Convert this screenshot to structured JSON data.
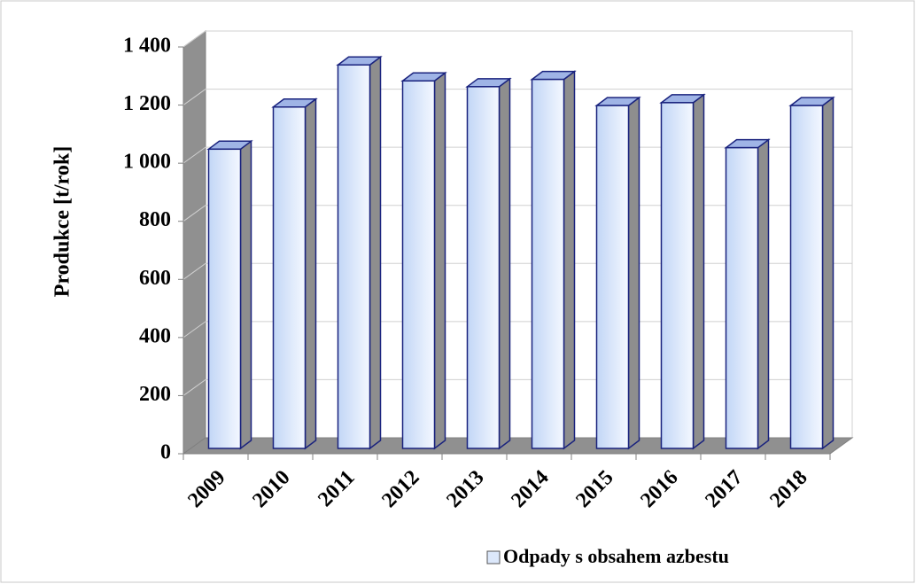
{
  "chart_data": {
    "type": "bar3d",
    "y_axis_label": "Produkce [t/rok]",
    "categories": [
      "2009",
      "2010",
      "2011",
      "2012",
      "2013",
      "2014",
      "2015",
      "2016",
      "2017",
      "2018"
    ],
    "series": [
      {
        "name": "Odpady s obsahem azbestu",
        "color": "#dce8fb",
        "values": [
          1030,
          1175,
          1320,
          1265,
          1245,
          1270,
          1180,
          1190,
          1035,
          1180
        ]
      }
    ],
    "ylim": [
      0,
      1400
    ],
    "yticks": [
      0,
      200,
      400,
      600,
      800,
      {
        "value": 1000,
        "label": "1 000"
      },
      {
        "value": 1200,
        "label": "1 200"
      },
      {
        "value": 1400,
        "label": "1 400"
      }
    ],
    "grid": true,
    "legend": "bottom"
  }
}
